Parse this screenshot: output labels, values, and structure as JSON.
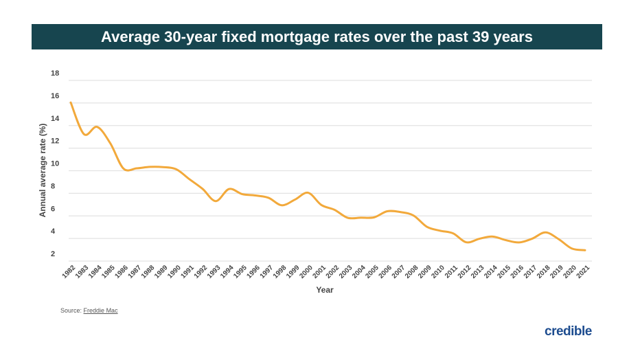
{
  "chart_data": {
    "type": "line",
    "title": "Average 30-year fixed mortgage rates over the past 39 years",
    "xlabel": "Year",
    "ylabel": "Annual average rate (%)",
    "ylim": [
      2,
      18
    ],
    "yticks": [
      2,
      4,
      6,
      8,
      10,
      12,
      14,
      16,
      18
    ],
    "grid": true,
    "line_color": "#f2a93b",
    "categories": [
      "1982",
      "1983",
      "1984",
      "1985",
      "1986",
      "1987",
      "1988",
      "1989",
      "1990",
      "1991",
      "1992",
      "1993",
      "1994",
      "1995",
      "1996",
      "1997",
      "1998",
      "1999",
      "2000",
      "2001",
      "2002",
      "2003",
      "2004",
      "2005",
      "2006",
      "2007",
      "2008",
      "2009",
      "2010",
      "2011",
      "2012",
      "2013",
      "2014",
      "2015",
      "2016",
      "2017",
      "2018",
      "2019",
      "2020",
      "2021"
    ],
    "values": [
      16.04,
      13.24,
      13.88,
      12.43,
      10.19,
      10.21,
      10.34,
      10.32,
      10.13,
      9.25,
      8.39,
      7.31,
      8.38,
      7.93,
      7.81,
      7.6,
      6.94,
      7.44,
      8.05,
      6.97,
      6.54,
      5.83,
      5.84,
      5.87,
      6.41,
      6.34,
      6.03,
      5.04,
      4.69,
      4.45,
      3.66,
      3.98,
      4.17,
      3.85,
      3.65,
      3.99,
      4.54,
      3.94,
      3.11,
      2.96
    ]
  },
  "footer": {
    "source_label": "Source:",
    "source_link": "Freddie Mac",
    "logo_text": "credible"
  },
  "colors": {
    "title_bar": "#17454f",
    "line": "#f2a93b",
    "logo": "#1d4c8f"
  }
}
